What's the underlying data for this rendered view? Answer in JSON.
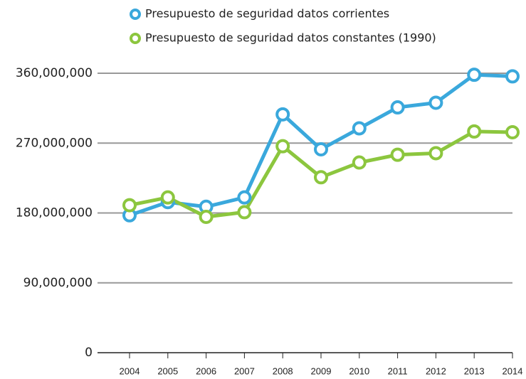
{
  "chart_data": {
    "type": "line",
    "categories": [
      "2004",
      "2005",
      "2006",
      "2007",
      "2008",
      "2009",
      "2010",
      "2011",
      "2012",
      "2013",
      "2014"
    ],
    "series": [
      {
        "name": "Presupuesto de seguridad datos corrientes",
        "color": "#3aa8dc",
        "values": [
          177000000,
          194000000,
          188000000,
          200000000,
          307000000,
          262000000,
          289000000,
          316000000,
          322000000,
          358000000,
          356000000
        ]
      },
      {
        "name": "Presupuesto de seguridad datos constantes (1990)",
        "color": "#8cc63e",
        "values": [
          190000000,
          200000000,
          175000000,
          181000000,
          266000000,
          226000000,
          245000000,
          255000000,
          257000000,
          285000000,
          284000000
        ]
      }
    ],
    "ylim": [
      0,
      400000000
    ],
    "yticks": [
      0,
      {
        "value": 90000000,
        "label": "90,000,000"
      },
      {
        "value": 180000000,
        "label": "180,000,000"
      },
      {
        "value": 270000000,
        "label": "270,000,000"
      },
      {
        "value": 360000000,
        "label": "360,000,000"
      }
    ],
    "grid": true,
    "legend": "top"
  }
}
